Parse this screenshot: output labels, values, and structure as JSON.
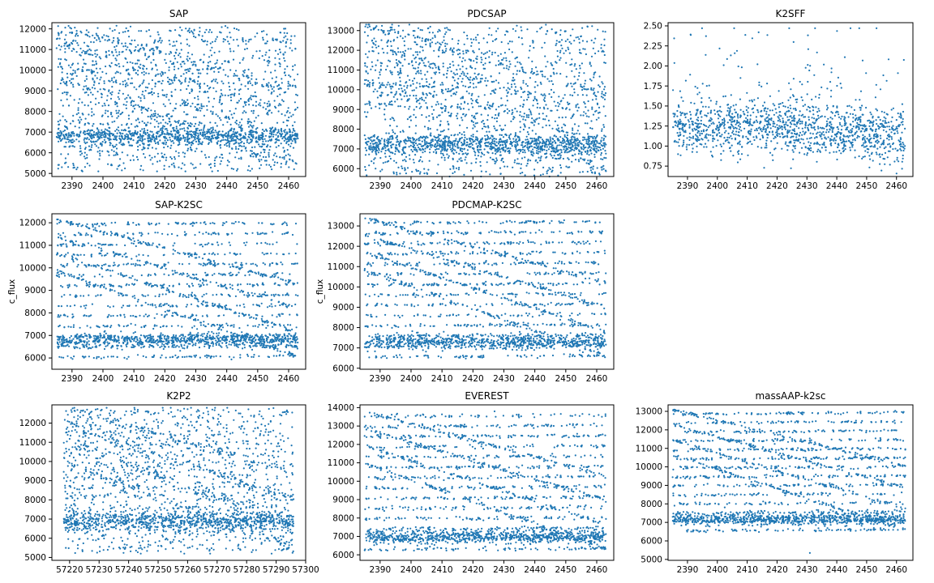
{
  "figure": {
    "colors": {
      "points": "#1f77b4",
      "axes": "#000000",
      "background": "#ffffff"
    },
    "point_style": "small scatter dots"
  },
  "chart_data": [
    {
      "type": "scatter",
      "title": "SAP",
      "ylabel": "",
      "xlim": [
        2383.5,
        2465.5
      ],
      "ylim": [
        4850,
        12300
      ],
      "xticks": [
        2390,
        2400,
        2410,
        2420,
        2430,
        2440,
        2450,
        2460
      ],
      "yticks": [
        5000,
        6000,
        7000,
        8000,
        9000,
        10000,
        11000,
        12000
      ],
      "x_range": [
        2385,
        2463
      ],
      "flux_range": [
        5100,
        12150
      ],
      "baseline_mean": 6800,
      "pattern": "noisy banded folded flux; dense band near baseline"
    },
    {
      "type": "scatter",
      "title": "PDCSAP",
      "ylabel": "",
      "xlim": [
        2383.5,
        2465.5
      ],
      "ylim": [
        5600,
        13400
      ],
      "xticks": [
        2390,
        2400,
        2410,
        2420,
        2430,
        2440,
        2450,
        2460
      ],
      "yticks": [
        6000,
        7000,
        8000,
        9000,
        10000,
        11000,
        12000,
        13000
      ],
      "x_range": [
        2385,
        2463
      ],
      "flux_range": [
        5600,
        13300
      ],
      "baseline_mean": 7200,
      "pattern": "noisy banded folded flux; baseline rises slightly with time"
    },
    {
      "type": "scatter",
      "title": "K2SFF",
      "ylabel": "",
      "xlim": [
        2383.5,
        2465.5
      ],
      "ylim": [
        0.62,
        2.54
      ],
      "xticks": [
        2390,
        2400,
        2410,
        2420,
        2430,
        2440,
        2450,
        2460
      ],
      "yticks": [
        0.75,
        1.0,
        1.25,
        1.5,
        1.75,
        2.0,
        2.25,
        2.5
      ],
      "ytick_labels": [
        "0.75",
        "1.00",
        "1.25",
        "1.50",
        "1.75",
        "2.00",
        "2.25",
        "2.50"
      ],
      "x_range": [
        2385,
        2463
      ],
      "flux_range": [
        0.65,
        2.47
      ],
      "baseline_mean": 1.2,
      "pattern": "normalized noisy flux around 1.0-1.3 with upward outliers to ~2.45"
    },
    {
      "type": "scatter",
      "title": "SAP-K2SC",
      "ylabel": "c_flux",
      "xlim": [
        2383.5,
        2465.5
      ],
      "ylim": [
        5500,
        12400
      ],
      "xticks": [
        2390,
        2400,
        2410,
        2420,
        2430,
        2440,
        2450,
        2460
      ],
      "yticks": [
        6000,
        7000,
        8000,
        9000,
        10000,
        11000,
        12000
      ],
      "x_range": [
        2385,
        2463
      ],
      "flux_range": [
        5800,
        12150
      ],
      "baseline_mean": 6800,
      "pattern": "clean horizontal flux bands with diagonal descending tracks"
    },
    {
      "type": "scatter",
      "title": "PDCMAP-K2SC",
      "ylabel": "c_flux",
      "xlim": [
        2383.5,
        2465.5
      ],
      "ylim": [
        5950,
        13600
      ],
      "xticks": [
        2390,
        2400,
        2410,
        2420,
        2430,
        2440,
        2450,
        2460
      ],
      "yticks": [
        6000,
        7000,
        8000,
        9000,
        10000,
        11000,
        12000,
        13000
      ],
      "x_range": [
        2385,
        2463
      ],
      "flux_range": [
        6300,
        13400
      ],
      "baseline_mean": 7300,
      "pattern": "clean flux bands with diagonal tracks; baseline dips near 2410"
    },
    {
      "type": "scatter",
      "title": "K2P2",
      "ylabel": "",
      "xlim": [
        57214,
        57300
      ],
      "ylim": [
        4850,
        12950
      ],
      "xticks": [
        57220,
        57230,
        57240,
        57250,
        57260,
        57270,
        57280,
        57290,
        57300
      ],
      "yticks": [
        5000,
        6000,
        7000,
        8000,
        9000,
        10000,
        11000,
        12000,
        13000
      ],
      "x_range": [
        57218,
        57296
      ],
      "flux_range": [
        5200,
        12800
      ],
      "baseline_mean": 6900,
      "pattern": "noisy banded folded flux; baseline rises after 57250"
    },
    {
      "type": "scatter",
      "title": "EVEREST",
      "ylabel": "",
      "xlim": [
        2383.5,
        2465.5
      ],
      "ylim": [
        5700,
        14150
      ],
      "xticks": [
        2390,
        2400,
        2410,
        2420,
        2430,
        2440,
        2450,
        2460
      ],
      "yticks": [
        6000,
        7000,
        8000,
        9000,
        10000,
        11000,
        12000,
        13000,
        14000
      ],
      "x_range": [
        2385,
        2463
      ],
      "flux_range": [
        6000,
        13800
      ],
      "baseline_mean": 7000,
      "pattern": "clean flux bands with many diagonal descending tracks"
    },
    {
      "type": "scatter",
      "title": "massAAP-k2sc",
      "ylabel": "",
      "xlim": [
        2383.5,
        2465.5
      ],
      "ylim": [
        4950,
        13350
      ],
      "xticks": [
        2390,
        2400,
        2410,
        2420,
        2430,
        2440,
        2450,
        2460
      ],
      "yticks": [
        5000,
        6000,
        7000,
        8000,
        9000,
        10000,
        11000,
        12000,
        13000
      ],
      "x_range": [
        2385,
        2463
      ],
      "flux_range": [
        6300,
        13100
      ],
      "baseline_mean": 7200,
      "pattern": "clean flux bands with diagonal descending tracks; single low outlier near 2430"
    }
  ]
}
